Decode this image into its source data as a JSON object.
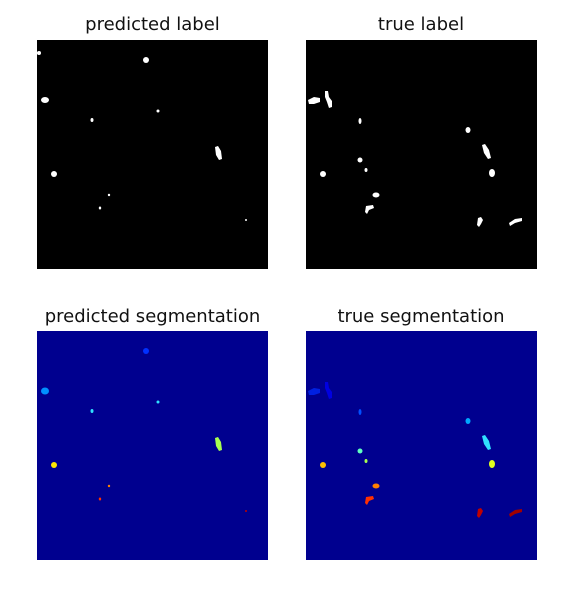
{
  "figure": {
    "panels": [
      {
        "title": "predicted label",
        "background": "#000000"
      },
      {
        "title": "true label",
        "background": "#000000"
      },
      {
        "title": "predicted segmentation",
        "background": "#00008f"
      },
      {
        "title": "true segmentation",
        "background": "#00008f"
      }
    ]
  },
  "colors": {
    "label_fg": "#ffffff",
    "label_bg": "#000000",
    "seg_bg": "#00008f",
    "jet_blue": "#0050ff",
    "jet_lightblue": "#00a8ff",
    "jet_cyan": "#30e0ff",
    "jet_teal": "#60ffc0",
    "jet_green": "#a8ff50",
    "jet_yellow": "#ffe800",
    "jet_orange": "#ff8000",
    "jet_red": "#ff3000",
    "jet_darkred": "#a00000"
  }
}
